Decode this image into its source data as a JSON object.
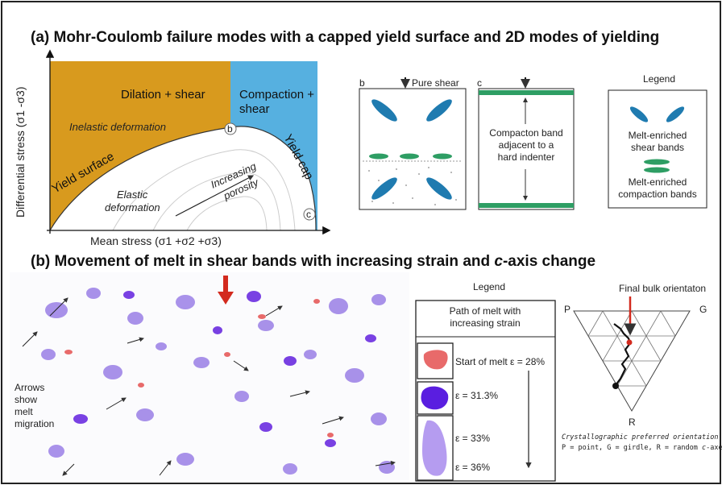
{
  "panel_a": {
    "title": "(a)  Mohr-Coulomb failure modes with a capped yield surface and 2D modes of yielding",
    "y_axis_label": "Differential stress (σ1 -σ3)",
    "x_axis_label": "Mean stress (σ1 +σ2 +σ3)",
    "region_dilation": "Dilation + shear",
    "region_compaction_line1": "Compaction +",
    "region_compaction_line2": "shear",
    "inelastic_label": "Inelastic deformation",
    "yield_surface_label": "Yield surface",
    "yield_cap_label": "Yield cap",
    "elastic_line1": "Elastic",
    "elastic_line2": "deformation",
    "porosity_line1": "Increasing",
    "porosity_line2": "porosity",
    "point_b": "b",
    "point_c": "c",
    "panel_b_letter": "b",
    "pure_shear_label": "Pure shear",
    "panel_c_letter": "c",
    "compaction_line1": "Compacton band",
    "compaction_line2": "adjacent to a",
    "compaction_line3": "hard indenter",
    "legend_title": "Legend",
    "legend_shear_line1": "Melt-enriched",
    "legend_shear_line2": "shear bands",
    "legend_comp_line1": "Melt-enriched",
    "legend_comp_line2": "compaction bands",
    "colors": {
      "dilation": "#d89a1e",
      "compaction": "#56b0e0",
      "band": "#1f7bb0",
      "compaction_band": "#2e9e64"
    }
  },
  "panel_b": {
    "title_pre": "(b)  Movement of melt in shear bands with increasing strain and ",
    "title_italic": "c",
    "title_post": "-axis change",
    "arrows_line1": "Arrows",
    "arrows_line2": "show",
    "arrows_line3": "melt",
    "arrows_line4": "migration",
    "legend_title": "Legend",
    "path_line1": "Path of melt with",
    "path_line2": "increasing strain",
    "step1": "Start of melt ε = 28%",
    "step2": "ε = 31.3%",
    "step3": "ε = 33%",
    "step4": "ε = 36%",
    "final_label": "Final bulk orientaton",
    "vertex_p": "P",
    "vertex_g": "G",
    "vertex_r": "R",
    "cpo_line1": "Crystallographic preferred orientation",
    "cpo_line2_pre": "P = point, G = girdle, R = random ",
    "cpo_line2_italic": "c",
    "cpo_line2_post": "-axes",
    "colors": {
      "melt_start": "#e86a6a",
      "melt_mid": "#6a2ce0",
      "melt_end": "#b59cf0",
      "arrow": "#d32a1e"
    }
  }
}
